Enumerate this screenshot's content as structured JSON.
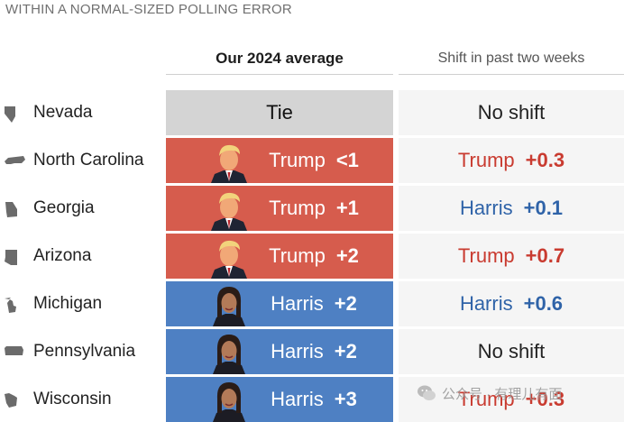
{
  "header": {
    "subtitle": "WITHIN A NORMAL-SIZED POLLING ERROR",
    "col_average": "Our 2024 average",
    "col_shift": "Shift in past two weeks"
  },
  "colors": {
    "trump_fill": "#d65c4d",
    "harris_fill": "#4e80c3",
    "tie_fill": "#d4d4d4",
    "trump_text": "#c93b30",
    "harris_text": "#2f63a8"
  },
  "rows": [
    {
      "state": "Nevada",
      "icon": "nevada-state-icon",
      "avg_type": "tie",
      "avg_label": "Tie",
      "avg_margin": "",
      "shift_who": "",
      "shift_amount": "",
      "shift_text": "No shift"
    },
    {
      "state": "North Carolina",
      "icon": "north-carolina-state-icon",
      "avg_type": "trump",
      "avg_label": "Trump",
      "avg_margin": "<1",
      "shift_who": "Trump",
      "shift_amount": "+0.3",
      "shift_text": ""
    },
    {
      "state": "Georgia",
      "icon": "georgia-state-icon",
      "avg_type": "trump",
      "avg_label": "Trump",
      "avg_margin": "+1",
      "shift_who": "Harris",
      "shift_amount": "+0.1",
      "shift_text": ""
    },
    {
      "state": "Arizona",
      "icon": "arizona-state-icon",
      "avg_type": "trump",
      "avg_label": "Trump",
      "avg_margin": "+2",
      "shift_who": "Trump",
      "shift_amount": "+0.7",
      "shift_text": ""
    },
    {
      "state": "Michigan",
      "icon": "michigan-state-icon",
      "avg_type": "harris",
      "avg_label": "Harris",
      "avg_margin": "+2",
      "shift_who": "Harris",
      "shift_amount": "+0.6",
      "shift_text": ""
    },
    {
      "state": "Pennsylvania",
      "icon": "pennsylvania-state-icon",
      "avg_type": "harris",
      "avg_label": "Harris",
      "avg_margin": "+2",
      "shift_who": "",
      "shift_amount": "",
      "shift_text": "No shift"
    },
    {
      "state": "Wisconsin",
      "icon": "wisconsin-state-icon",
      "avg_type": "harris",
      "avg_label": "Harris",
      "avg_margin": "+3",
      "shift_who": "Trump",
      "shift_amount": "+0.3",
      "shift_text": ""
    }
  ],
  "watermark": {
    "text": "公众号 · 有理儿有面"
  }
}
